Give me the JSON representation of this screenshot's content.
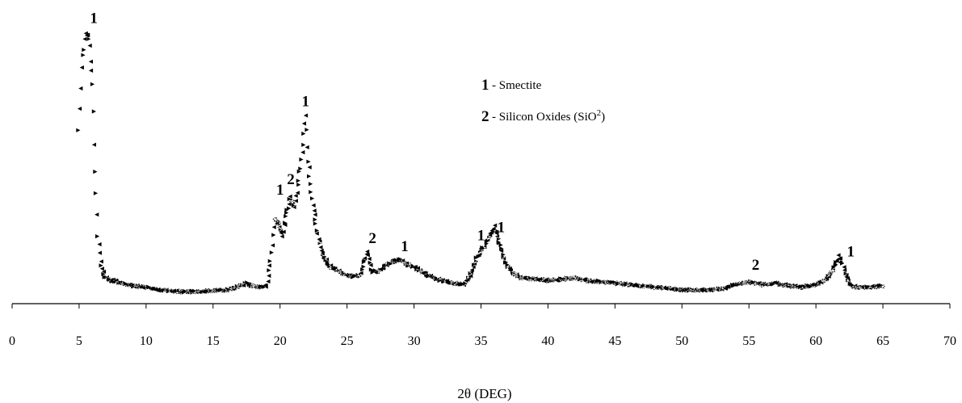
{
  "chart_data": {
    "type": "line",
    "title": "",
    "xlabel": "2θ (DEG)",
    "ylabel": "",
    "xlim": [
      0,
      70
    ],
    "x_ticks": [
      0,
      5,
      10,
      15,
      20,
      25,
      30,
      35,
      40,
      45,
      50,
      55,
      60,
      65,
      70
    ],
    "y_axis_shown": false,
    "grid": false,
    "legend": [
      {
        "marker": "1",
        "label": "Smectite"
      },
      {
        "marker": "2",
        "label": "Silicon Oxides (SiO",
        "superscript": "2",
        "suffix": ")"
      }
    ],
    "legend_placement": "top-center",
    "series": [
      {
        "x": [
          5.0,
          5.2,
          5.4,
          5.6,
          5.8,
          6.0,
          6.2,
          6.4,
          6.6,
          6.8,
          7.0,
          7.5,
          8.0,
          9.0,
          10.0,
          11.0,
          12.0,
          13.0,
          14.0,
          15.0,
          16.0,
          17.0,
          17.5,
          18.0,
          18.5,
          19.0,
          19.3,
          19.6,
          19.9,
          20.2,
          20.5,
          20.8,
          21.1,
          21.4,
          21.7,
          21.9,
          22.1,
          22.4,
          22.8,
          23.2,
          23.8,
          24.5,
          25.0,
          25.5,
          26.0,
          26.5,
          26.7,
          26.9,
          27.5,
          28.0,
          28.5,
          29.0,
          29.5,
          30.0,
          31.0,
          32.0,
          33.0,
          33.8,
          34.3,
          34.8,
          35.3,
          35.7,
          36.0,
          36.4,
          36.8,
          37.3,
          38.0,
          39.0,
          40.0,
          41.0,
          42.0,
          43.0,
          44.0,
          45.0,
          46.0,
          47.0,
          48.0,
          49.0,
          50.0,
          51.0,
          52.0,
          53.0,
          54.0,
          55.0,
          56.0,
          57.0,
          58.0,
          59.0,
          60.0,
          60.8,
          61.3,
          61.7,
          62.0,
          62.3,
          62.7,
          63.2,
          64.0,
          65.0
        ],
        "y": [
          62,
          85,
          95,
          98,
          92,
          78,
          45,
          22,
          12,
          8,
          6,
          5,
          4.5,
          3,
          2.5,
          1.5,
          1,
          0.8,
          1,
          1.2,
          1.5,
          3,
          4,
          3,
          2.5,
          3,
          12,
          28,
          26,
          22,
          30,
          36,
          32,
          42,
          56,
          67,
          50,
          35,
          22,
          14,
          10,
          8,
          7,
          6.5,
          7,
          16,
          12,
          8,
          9,
          11,
          12,
          13,
          11,
          10,
          7,
          5,
          4,
          3.5,
          8,
          15,
          18,
          22,
          25,
          19,
          12,
          8,
          6,
          5.5,
          5,
          5.5,
          6,
          5,
          4.5,
          4,
          3.5,
          3,
          2.5,
          2,
          1.5,
          1.5,
          1.5,
          2,
          3.5,
          4.5,
          3.5,
          4,
          3,
          2.5,
          3.5,
          5.5,
          9,
          14,
          11,
          6,
          3,
          2.5,
          2.5,
          3
        ]
      }
    ],
    "peak_labels": [
      {
        "text": "1",
        "x": 6.1,
        "y": 101
      },
      {
        "text": "1",
        "x": 21.9,
        "y": 70
      },
      {
        "text": "1",
        "x": 20.0,
        "y": 37
      },
      {
        "text": "2",
        "x": 20.8,
        "y": 41
      },
      {
        "text": "2",
        "x": 26.9,
        "y": 19
      },
      {
        "text": "1",
        "x": 29.3,
        "y": 16
      },
      {
        "text": "1",
        "x": 35.0,
        "y": 20
      },
      {
        "text": "1",
        "x": 36.5,
        "y": 23
      },
      {
        "text": "2",
        "x": 55.5,
        "y": 9
      },
      {
        "text": "1",
        "x": 62.6,
        "y": 14
      }
    ]
  }
}
